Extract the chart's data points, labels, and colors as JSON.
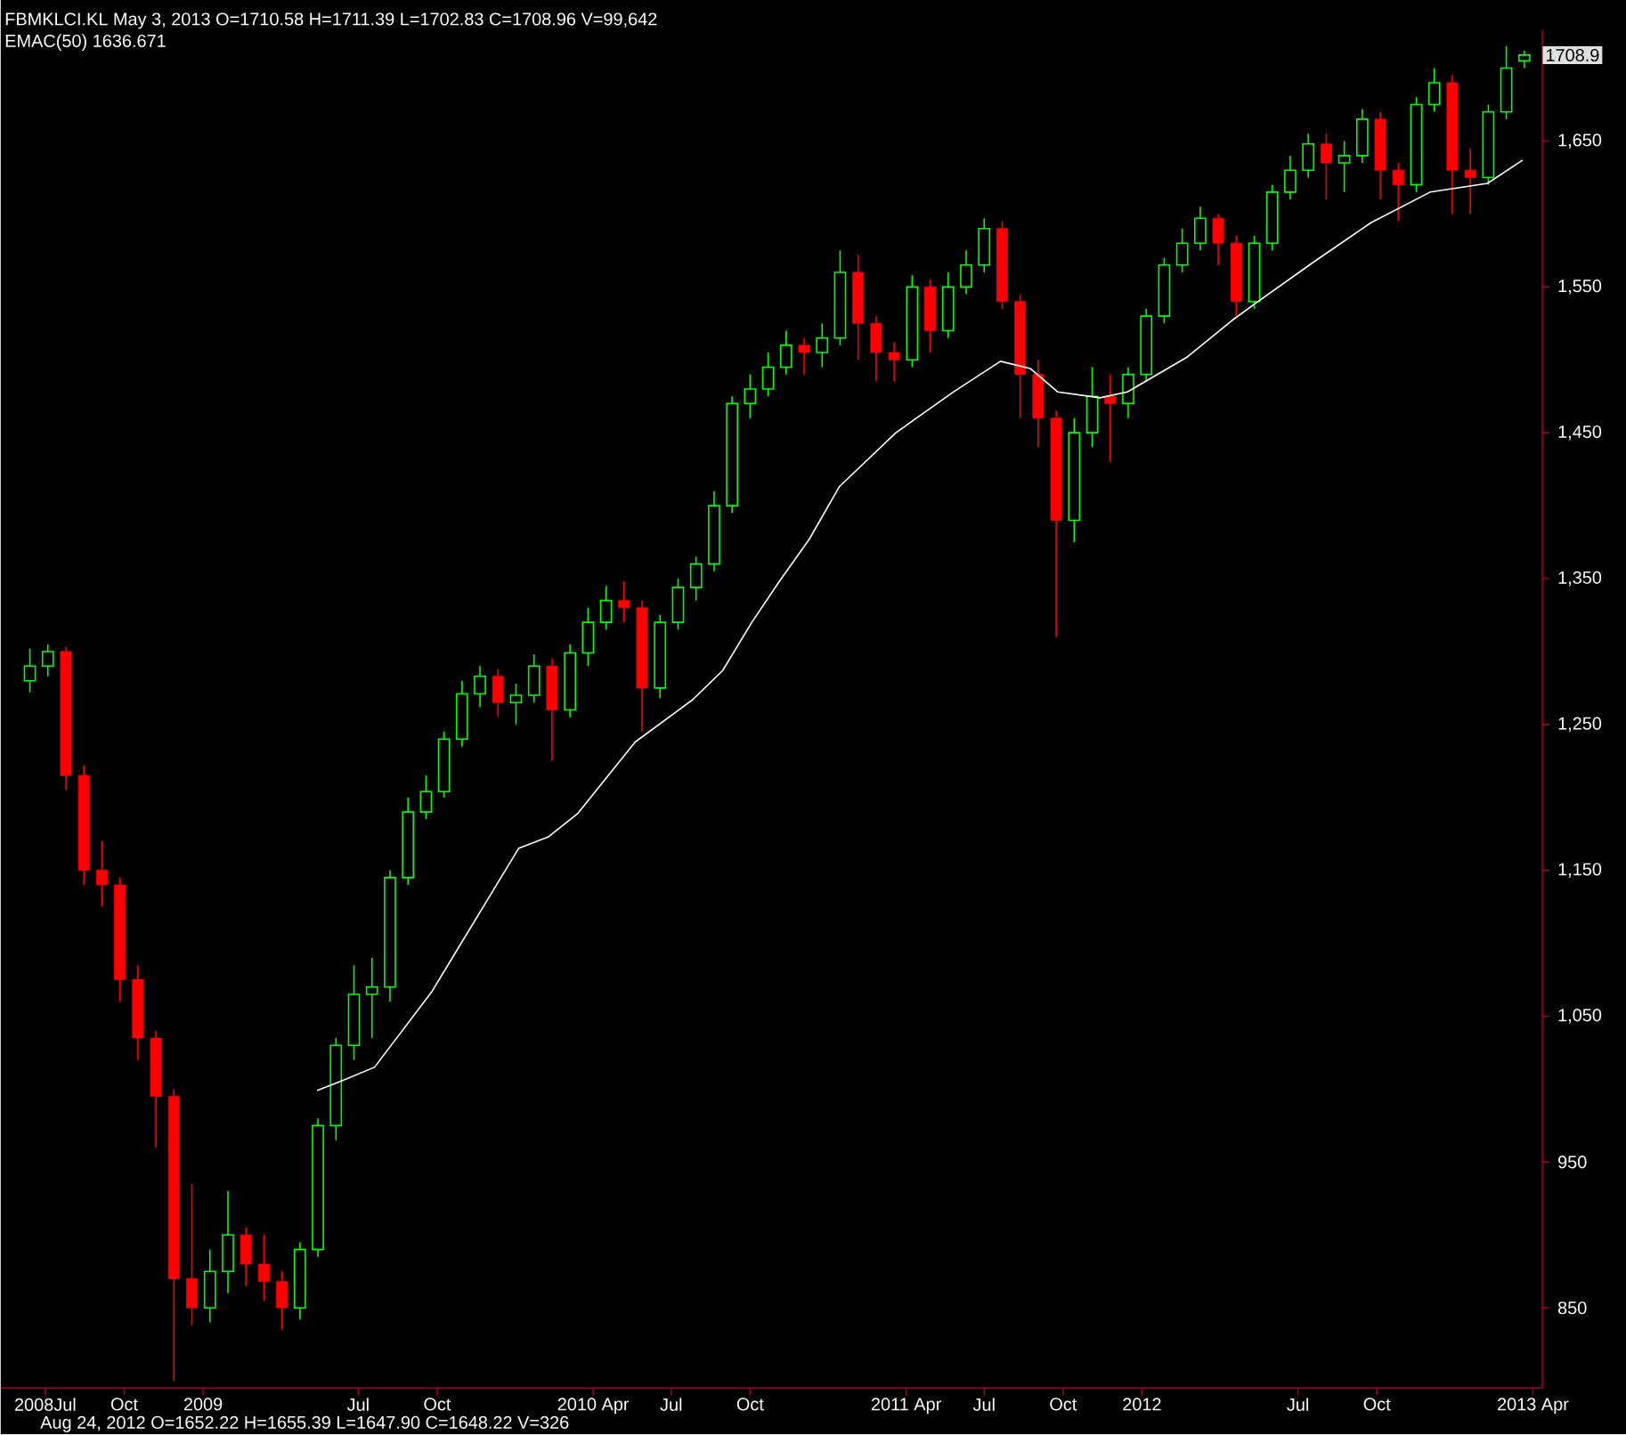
{
  "chart_data": {
    "type": "candlestick",
    "title": "FBMKLCI.KL May 3, 2013   O=1710.58   H=1711.39   L=1702.83   C=1708.96   V=99,642",
    "annotations": [
      {
        "text": "1708.9",
        "y": 1708.9
      },
      "Aug 24, 2012   O=1652.22   H=1655.39   L=1647.90   C=1648.22   V=326"
    ],
    "xlim": [
      "2008-05-10",
      "2013-04-12"
    ],
    "ylim": [
      795,
      1726
    ],
    "xticks": [
      {
        "value": "2008-07-01",
        "label": "2008Jul"
      },
      {
        "value": "2008-10-01",
        "label": "Oct"
      },
      {
        "value": "2009-01-01",
        "label": "2009"
      },
      {
        "value": "2009-07-01",
        "label": "Jul"
      },
      {
        "value": "2009-10-01",
        "label": "Oct"
      },
      {
        "value": "2010-04-01",
        "label": "2010 Apr"
      },
      {
        "value": "2010-07-01",
        "label": "Jul"
      },
      {
        "value": "2010-10-01",
        "label": "Oct"
      },
      {
        "value": "2011-04-01",
        "label": "2011 Apr"
      },
      {
        "value": "2011-07-01",
        "label": "Jul"
      },
      {
        "value": "2011-10-01",
        "label": "Oct"
      },
      {
        "value": "2012-01-01",
        "label": "2012"
      },
      {
        "value": "2012-07-01",
        "label": "Jul"
      },
      {
        "value": "2012-10-01",
        "label": "Oct"
      },
      {
        "value": "2013-04-01",
        "label": "2013 Apr"
      }
    ],
    "yticks": [
      {
        "value": 850,
        "label": "850"
      },
      {
        "value": 950,
        "label": "950"
      },
      {
        "value": 1050,
        "label": "1,050"
      },
      {
        "value": 1150,
        "label": "1,150"
      },
      {
        "value": 1250,
        "label": "1,250"
      },
      {
        "value": 1350,
        "label": "1,350"
      },
      {
        "value": 1450,
        "label": "1,450"
      },
      {
        "value": 1550,
        "label": "1,550"
      },
      {
        "value": 1650,
        "label": "1,650"
      }
    ],
    "series": [
      {
        "x": [
          "2008-06-13",
          "2008-07-04",
          "2008-07-25",
          "2008-08-15",
          "2008-09-05",
          "2008-09-26",
          "2008-10-17",
          "2008-11-07",
          "2008-11-28",
          "2008-12-19",
          "2009-01-09",
          "2009-01-30",
          "2009-02-20",
          "2009-03-13",
          "2009-04-03",
          "2009-04-24",
          "2009-05-15",
          "2009-06-05",
          "2009-06-26",
          "2009-07-17",
          "2009-08-07",
          "2009-08-28",
          "2009-09-18",
          "2009-10-09",
          "2009-10-30",
          "2009-11-20",
          "2009-12-11",
          "2010-01-01",
          "2010-01-22",
          "2010-02-12",
          "2010-03-05",
          "2010-03-26",
          "2010-04-16",
          "2010-05-07",
          "2010-05-28",
          "2010-06-18",
          "2010-07-09",
          "2010-07-30",
          "2010-08-20",
          "2010-09-10",
          "2010-10-01",
          "2010-10-22",
          "2010-11-12",
          "2010-12-03",
          "2010-12-24",
          "2011-01-14",
          "2011-02-04",
          "2011-02-25",
          "2011-03-18",
          "2011-04-08",
          "2011-04-29",
          "2011-05-20",
          "2011-06-10",
          "2011-07-01",
          "2011-07-22",
          "2011-08-12",
          "2011-09-02",
          "2011-09-23",
          "2011-10-14",
          "2011-11-04",
          "2011-11-25",
          "2011-12-16",
          "2012-01-06",
          "2012-01-27",
          "2012-02-17",
          "2012-03-09",
          "2012-03-30",
          "2012-04-20",
          "2012-05-11",
          "2012-06-01",
          "2012-06-22",
          "2012-07-13",
          "2012-08-03",
          "2012-08-24",
          "2012-09-14",
          "2012-10-05",
          "2012-10-26",
          "2012-11-16",
          "2012-12-07",
          "2012-12-28",
          "2013-01-18",
          "2013-02-08",
          "2013-03-01",
          "2013-03-22"
        ],
        "ohlc": [
          [
            1280,
            1302,
            1272,
            1290
          ],
          [
            1290,
            1305,
            1283,
            1300
          ],
          [
            1300,
            1303,
            1205,
            1215
          ],
          [
            1215,
            1222,
            1140,
            1150
          ],
          [
            1150,
            1170,
            1125,
            1140
          ],
          [
            1140,
            1145,
            1060,
            1075
          ],
          [
            1075,
            1085,
            1020,
            1035
          ],
          [
            1035,
            1040,
            960,
            995
          ],
          [
            995,
            1000,
            800,
            870
          ],
          [
            870,
            935,
            838,
            850
          ],
          [
            850,
            890,
            840,
            875
          ],
          [
            875,
            930,
            860,
            900
          ],
          [
            900,
            905,
            865,
            880
          ],
          [
            880,
            900,
            855,
            868
          ],
          [
            868,
            875,
            835,
            850
          ],
          [
            850,
            895,
            842,
            890
          ],
          [
            890,
            980,
            885,
            975
          ],
          [
            975,
            1035,
            965,
            1030
          ],
          [
            1030,
            1085,
            1020,
            1065
          ],
          [
            1065,
            1090,
            1035,
            1070
          ],
          [
            1070,
            1150,
            1060,
            1145
          ],
          [
            1145,
            1200,
            1140,
            1190
          ],
          [
            1190,
            1215,
            1185,
            1204
          ],
          [
            1204,
            1245,
            1200,
            1240
          ],
          [
            1240,
            1280,
            1235,
            1271
          ],
          [
            1271,
            1290,
            1262,
            1283
          ],
          [
            1283,
            1288,
            1255,
            1265
          ],
          [
            1265,
            1278,
            1250,
            1270
          ],
          [
            1270,
            1298,
            1265,
            1290
          ],
          [
            1290,
            1295,
            1225,
            1260
          ],
          [
            1260,
            1305,
            1255,
            1299
          ],
          [
            1299,
            1330,
            1290,
            1320
          ],
          [
            1320,
            1345,
            1315,
            1335
          ],
          [
            1335,
            1348,
            1320,
            1330
          ],
          [
            1330,
            1335,
            1245,
            1275
          ],
          [
            1275,
            1325,
            1268,
            1320
          ],
          [
            1320,
            1350,
            1315,
            1344
          ],
          [
            1344,
            1365,
            1335,
            1360
          ],
          [
            1360,
            1410,
            1355,
            1400
          ],
          [
            1400,
            1475,
            1395,
            1470
          ],
          [
            1470,
            1490,
            1460,
            1480
          ],
          [
            1480,
            1505,
            1475,
            1495
          ],
          [
            1495,
            1520,
            1490,
            1510
          ],
          [
            1510,
            1515,
            1490,
            1505
          ],
          [
            1505,
            1525,
            1495,
            1515
          ],
          [
            1515,
            1575,
            1510,
            1560
          ],
          [
            1560,
            1572,
            1500,
            1525
          ],
          [
            1525,
            1530,
            1485,
            1505
          ],
          [
            1505,
            1512,
            1485,
            1500
          ],
          [
            1500,
            1558,
            1495,
            1550
          ],
          [
            1550,
            1555,
            1505,
            1520
          ],
          [
            1520,
            1560,
            1515,
            1550
          ],
          [
            1550,
            1575,
            1545,
            1565
          ],
          [
            1565,
            1597,
            1560,
            1590
          ],
          [
            1590,
            1595,
            1535,
            1540
          ],
          [
            1540,
            1545,
            1460,
            1490
          ],
          [
            1490,
            1500,
            1440,
            1460
          ],
          [
            1460,
            1465,
            1310,
            1390
          ],
          [
            1390,
            1460,
            1375,
            1450
          ],
          [
            1450,
            1495,
            1440,
            1475
          ],
          [
            1475,
            1490,
            1430,
            1470
          ],
          [
            1470,
            1495,
            1460,
            1490
          ],
          [
            1490,
            1535,
            1485,
            1530
          ],
          [
            1530,
            1570,
            1525,
            1565
          ],
          [
            1565,
            1590,
            1560,
            1580
          ],
          [
            1580,
            1605,
            1575,
            1597
          ],
          [
            1597,
            1600,
            1565,
            1580
          ],
          [
            1580,
            1585,
            1530,
            1540
          ],
          [
            1540,
            1585,
            1535,
            1580
          ],
          [
            1580,
            1620,
            1575,
            1615
          ],
          [
            1615,
            1640,
            1610,
            1630
          ],
          [
            1630,
            1655,
            1625,
            1648
          ],
          [
            1648,
            1655,
            1610,
            1635
          ],
          [
            1635,
            1650,
            1615,
            1640
          ],
          [
            1640,
            1672,
            1635,
            1665
          ],
          [
            1665,
            1670,
            1610,
            1630
          ],
          [
            1630,
            1635,
            1595,
            1620
          ],
          [
            1620,
            1680,
            1615,
            1675
          ],
          [
            1675,
            1700,
            1670,
            1690
          ],
          [
            1690,
            1695,
            1600,
            1630
          ],
          [
            1630,
            1645,
            1600,
            1625
          ],
          [
            1625,
            1675,
            1620,
            1670
          ],
          [
            1670,
            1715,
            1665,
            1700
          ],
          [
            1705,
            1712,
            1700,
            1709
          ]
        ],
        "colors": [
          "#00ff00",
          "#00ff00",
          "#ff0000",
          "#ff0000",
          "#ff0000",
          "#ff0000",
          "#ff0000",
          "#ff0000",
          "#ff0000",
          "#ff0000",
          "#00ff00",
          "#00ff00",
          "#ff0000",
          "#ff0000",
          "#ff0000",
          "#00ff00",
          "#00ff00",
          "#00ff00",
          "#00ff00",
          "#00ff00",
          "#00ff00",
          "#00ff00",
          "#00ff00",
          "#00ff00",
          "#00ff00",
          "#00ff00",
          "#ff0000",
          "#00ff00",
          "#00ff00",
          "#ff0000",
          "#00ff00",
          "#00ff00",
          "#00ff00",
          "#ff0000",
          "#ff0000",
          "#00ff00",
          "#00ff00",
          "#00ff00",
          "#00ff00",
          "#00ff00",
          "#00ff00",
          "#00ff00",
          "#00ff00",
          "#ff0000",
          "#00ff00",
          "#00ff00",
          "#ff0000",
          "#ff0000",
          "#ff0000",
          "#00ff00",
          "#ff0000",
          "#00ff00",
          "#00ff00",
          "#00ff00",
          "#ff0000",
          "#ff0000",
          "#ff0000",
          "#ff0000",
          "#00ff00",
          "#00ff00",
          "#ff0000",
          "#00ff00",
          "#00ff00",
          "#00ff00",
          "#00ff00",
          "#00ff00",
          "#ff0000",
          "#ff0000",
          "#00ff00",
          "#00ff00",
          "#00ff00",
          "#00ff00",
          "#ff0000",
          "#00ff00",
          "#00ff00",
          "#ff0000",
          "#ff0000",
          "#00ff00",
          "#00ff00",
          "#ff0000",
          "#ff0000",
          "#00ff00",
          "#00ff00",
          "#00ff00"
        ]
      },
      {
        "type": "line",
        "name": "EMAC(50) 1636.671",
        "color": "#ffffff",
        "x": [
          "2009-05-14",
          "2009-06-09",
          "2009-07-20",
          "2009-09-25",
          "2010-01-04",
          "2010-02-08",
          "2010-03-14",
          "2010-05-20",
          "2010-07-26",
          "2010-08-30",
          "2010-10-03",
          "2010-11-04",
          "2010-12-09",
          "2011-01-13",
          "2011-03-20",
          "2011-05-26",
          "2011-07-20",
          "2011-08-24",
          "2011-09-25",
          "2011-11-13",
          "2011-12-15",
          "2012-02-23",
          "2012-04-15",
          "2012-05-13",
          "2012-07-19",
          "2012-09-24",
          "2012-12-02",
          "2013-02-07",
          "2013-03-20"
        ],
        "values": [
          999,
          1005,
          1015,
          1067,
          1165,
          1173,
          1189,
          1238,
          1267,
          1287,
          1320,
          1348,
          1377,
          1413,
          1450,
          1478,
          1499,
          1494,
          1478,
          1474,
          1478,
          1502,
          1527,
          1539,
          1567,
          1594,
          1615,
          1621,
          1637
        ]
      }
    ]
  }
}
